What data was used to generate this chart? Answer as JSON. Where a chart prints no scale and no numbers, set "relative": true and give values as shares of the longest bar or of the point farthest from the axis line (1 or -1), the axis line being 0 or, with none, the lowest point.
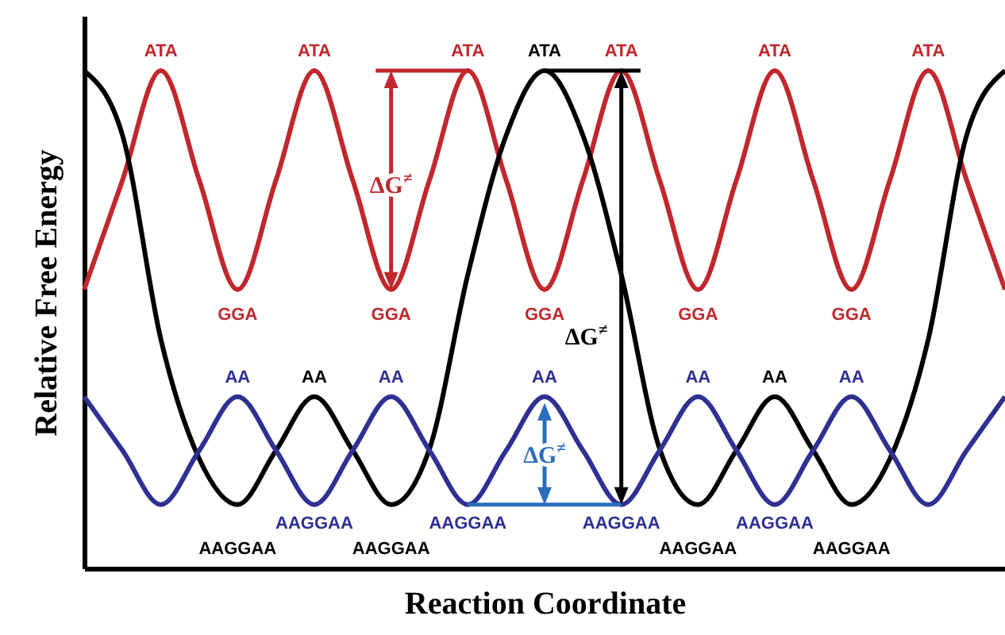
{
  "chart_data": {
    "type": "line",
    "relative": true,
    "xlabel": "Reaction Coordinate",
    "ylabel": "Relative Free Energy",
    "grid": false,
    "marker": "none",
    "line_style": "solid",
    "categories": [
      null,
      null,
      null,
      null,
      null,
      null,
      null,
      null,
      null,
      null,
      null,
      null,
      null,
      null,
      null,
      null,
      null,
      null,
      null,
      null,
      null,
      null,
      null,
      null,
      null
    ],
    "series": [
      {
        "color": "#c1272d",
        "values": [
          0.56,
          0.78,
          1.0,
          0.78,
          0.56,
          0.78,
          1.0,
          0.78,
          0.56,
          0.78,
          1.0,
          0.78,
          0.56,
          0.78,
          1.0,
          0.78,
          0.56,
          0.78,
          1.0,
          0.78,
          0.56,
          0.78,
          1.0,
          0.78,
          0.56
        ]
      },
      {
        "color": "#000000",
        "values": [
          1.0,
          0.87,
          0.46,
          0.22,
          0.128,
          0.237,
          0.345,
          0.237,
          0.128,
          0.24,
          0.59,
          0.87,
          1.0,
          0.87,
          0.59,
          0.24,
          0.128,
          0.237,
          0.345,
          0.237,
          0.128,
          0.22,
          0.46,
          0.87,
          1.0
        ]
      },
      {
        "color": "#2e3192",
        "values": [
          0.345,
          0.237,
          0.128,
          0.237,
          0.345,
          0.237,
          0.128,
          0.237,
          0.345,
          0.237,
          0.128,
          0.237,
          0.345,
          0.237,
          0.128,
          0.237,
          0.345,
          0.237,
          0.128,
          0.237,
          0.345,
          0.237,
          0.128,
          0.237,
          0.345
        ]
      }
    ],
    "annotations": [
      "ATA",
      "ATA",
      "ATA",
      "ATA",
      "ATA",
      "ATA",
      "ATA",
      "GGA",
      "GGA",
      "GGA",
      "GGA",
      "GGA",
      "AA",
      "AA",
      "AA",
      "AA",
      "AA",
      "AA",
      "AA",
      "AAGGAA",
      "AAGGAA",
      "AAGGAA",
      "AAGGAA",
      "AAGGAA",
      "AAGGAA",
      "AAGGAA",
      "AAGGAA",
      "ΔG$^{≠}$",
      "ΔG$^{≠}$",
      "ΔG$^{≠}$"
    ]
  }
}
